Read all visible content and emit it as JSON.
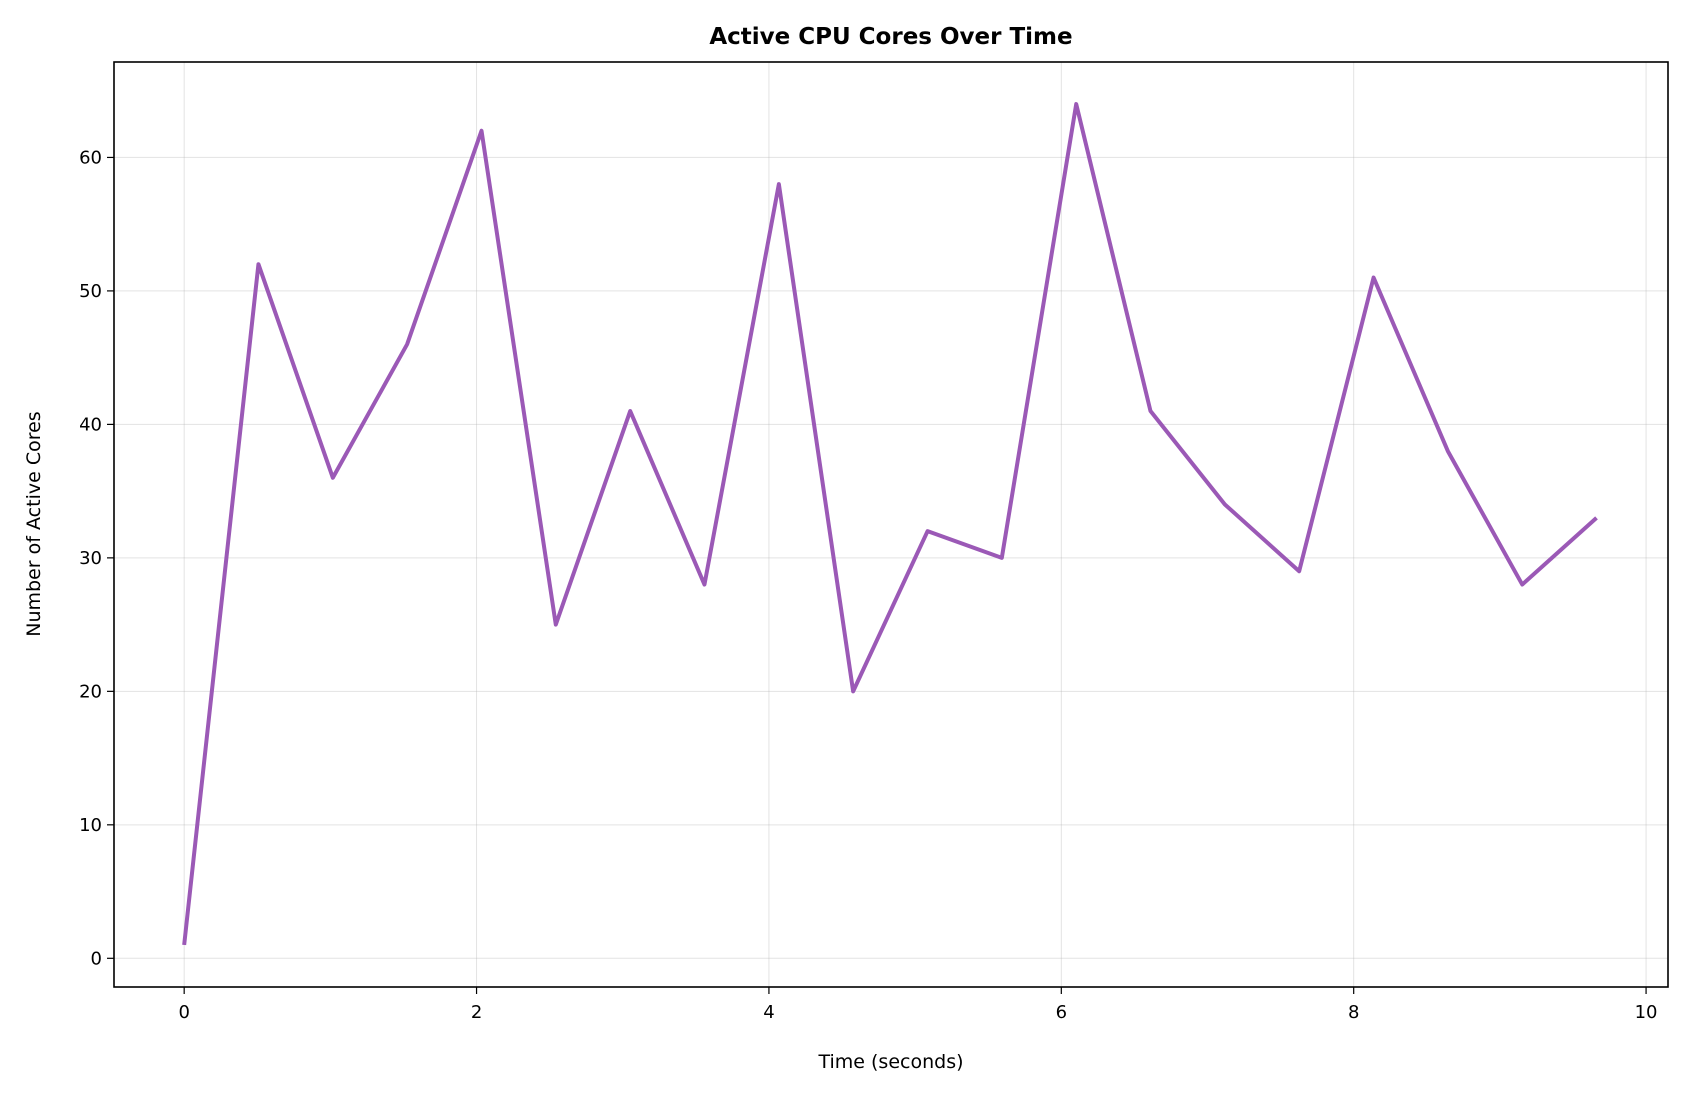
{
  "chart_data": {
    "type": "line",
    "title": "Active CPU Cores Over Time",
    "xlabel": "Time (seconds)",
    "ylabel": "Number of Active Cores",
    "xlim": [
      -0.48,
      10.15
    ],
    "ylim": [
      -2.15,
      67.15
    ],
    "xticks": [
      0,
      2,
      4,
      6,
      8,
      10
    ],
    "yticks": [
      0,
      10,
      20,
      30,
      40,
      50,
      60
    ],
    "grid": true,
    "color": "#9b59b6",
    "series": [
      {
        "x": [
          0,
          0.508,
          1.017,
          1.525,
          2.034,
          2.542,
          3.051,
          3.559,
          4.068,
          4.576,
          5.085,
          5.593,
          6.102,
          6.61,
          7.119,
          7.627,
          8.136,
          8.644,
          9.153,
          9.661
        ],
        "values": [
          1,
          52,
          36,
          46,
          62,
          25,
          41,
          28,
          58,
          20,
          32,
          30,
          64,
          41,
          34,
          29,
          51,
          38,
          28,
          33
        ]
      }
    ]
  }
}
